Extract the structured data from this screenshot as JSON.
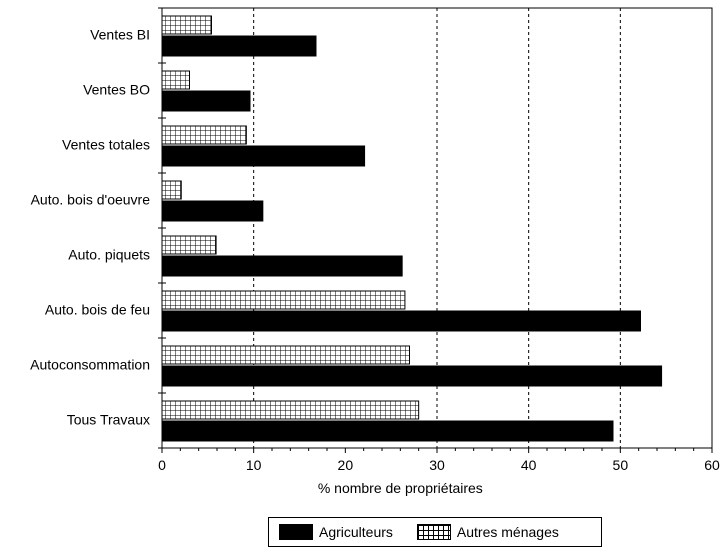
{
  "chart_data": {
    "type": "bar",
    "orientation": "horizontal",
    "categories": [
      "Ventes BI",
      "Ventes BO",
      "Ventes totales",
      "Auto. bois d'oeuvre",
      "Auto. piquets",
      "Auto. bois de feu",
      "Autoconsommation",
      "Tous Travaux"
    ],
    "series": [
      {
        "name": "Agriculteurs",
        "values": [
          16.8,
          9.6,
          22.1,
          11.0,
          26.2,
          52.2,
          54.5,
          49.2
        ]
      },
      {
        "name": "Autres ménages",
        "values": [
          5.4,
          3.0,
          9.2,
          2.1,
          5.9,
          26.5,
          27.0,
          28.0
        ]
      }
    ],
    "xlabel": "% nombre de propriétaires",
    "ylabel": "",
    "xlim": [
      0,
      60
    ],
    "x_ticks": [
      "0",
      "10",
      "20",
      "30",
      "40",
      "50",
      "60"
    ],
    "grid": "vertical dashed at 10, 30, 40, 50",
    "legend_position": "bottom",
    "colors": {
      "Agriculteurs": "#000000",
      "Autres ménages": "hatched"
    }
  }
}
